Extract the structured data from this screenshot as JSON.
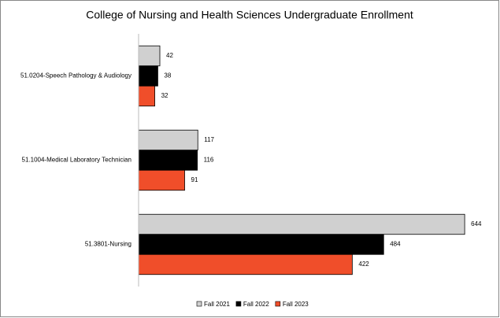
{
  "chart_data": {
    "type": "barh",
    "title": "College of Nursing and Health Sciences Undergraduate Enrollment",
    "categories": [
      "51.0204-Speech Pathology & Audiology",
      "51.1004-Medical Laboratory Technician",
      "51.3801-Nursing"
    ],
    "series": [
      {
        "name": "Fall 2021",
        "color": "#d0d0d0",
        "values": [
          42,
          117,
          644
        ]
      },
      {
        "name": "Fall 2022",
        "color": "#000000",
        "values": [
          38,
          116,
          484
        ]
      },
      {
        "name": "Fall 2023",
        "color": "#f04e2a",
        "values": [
          32,
          91,
          422
        ]
      }
    ],
    "xlim": [
      0,
      650
    ],
    "legend": "bottom"
  }
}
